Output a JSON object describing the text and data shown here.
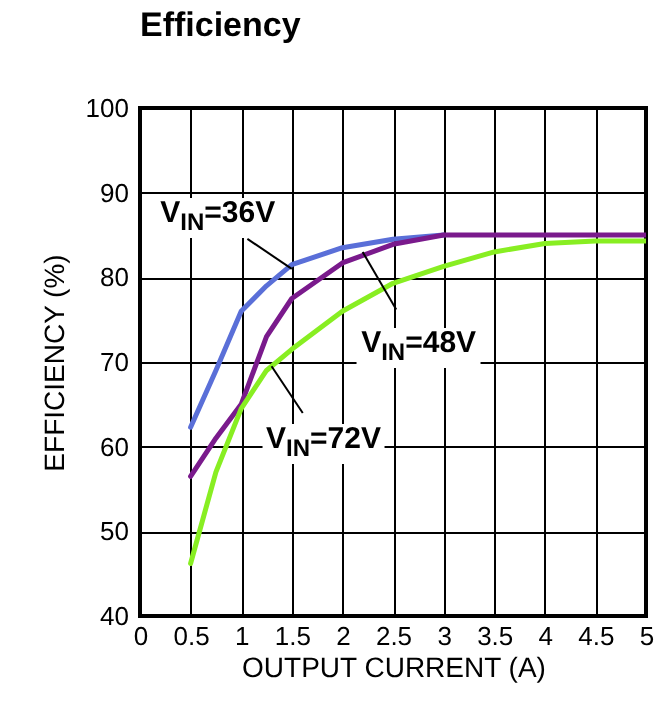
{
  "chart_data": {
    "type": "line",
    "title": "Efficiency",
    "xlabel": "OUTPUT CURRENT (A)",
    "ylabel": "EFFICIENCY (%)",
    "xlim": [
      0,
      5
    ],
    "xticks": [
      0,
      0.5,
      1,
      1.5,
      2,
      2.5,
      3,
      3.5,
      4,
      4.5,
      5
    ],
    "ylim": [
      40,
      100
    ],
    "yticks": [
      40,
      50,
      60,
      70,
      80,
      90,
      100
    ],
    "grid": true,
    "marker": "none",
    "line_style": "solid",
    "series": [
      {
        "color": "#5a6fd8",
        "x": [
          0.5,
          0.75,
          1,
          1.25,
          1.5,
          2,
          2.5,
          3
        ],
        "values": [
          62.3,
          69,
          76,
          79,
          81.5,
          83.5,
          84.5,
          85
        ]
      },
      {
        "color": "#7a1a8c",
        "x": [
          0.5,
          0.75,
          1,
          1.25,
          1.5,
          2,
          2.5,
          3,
          3.5,
          4,
          4.5,
          5
        ],
        "values": [
          56.5,
          61,
          65,
          73,
          77.5,
          81.7,
          83.9,
          85,
          85,
          85,
          85,
          85
        ]
      },
      {
        "color": "#88ee22",
        "x": [
          0.5,
          0.75,
          1,
          1.25,
          1.5,
          2,
          2.5,
          3,
          3.5,
          4,
          4.5,
          5
        ],
        "values": [
          46.2,
          57,
          64.5,
          69,
          71.5,
          76,
          79.3,
          81.3,
          83,
          84,
          84.3,
          84.3
        ]
      }
    ],
    "annotations": [
      {
        "text": "V$_{IN}$=36V",
        "x": 1.5,
        "y": 81
      },
      {
        "text": "V$_{IN}$=48V",
        "x": 2.2,
        "y": 83
      },
      {
        "text": "V$_{IN}$=72V",
        "x": 1.3,
        "y": 69.5
      }
    ]
  }
}
